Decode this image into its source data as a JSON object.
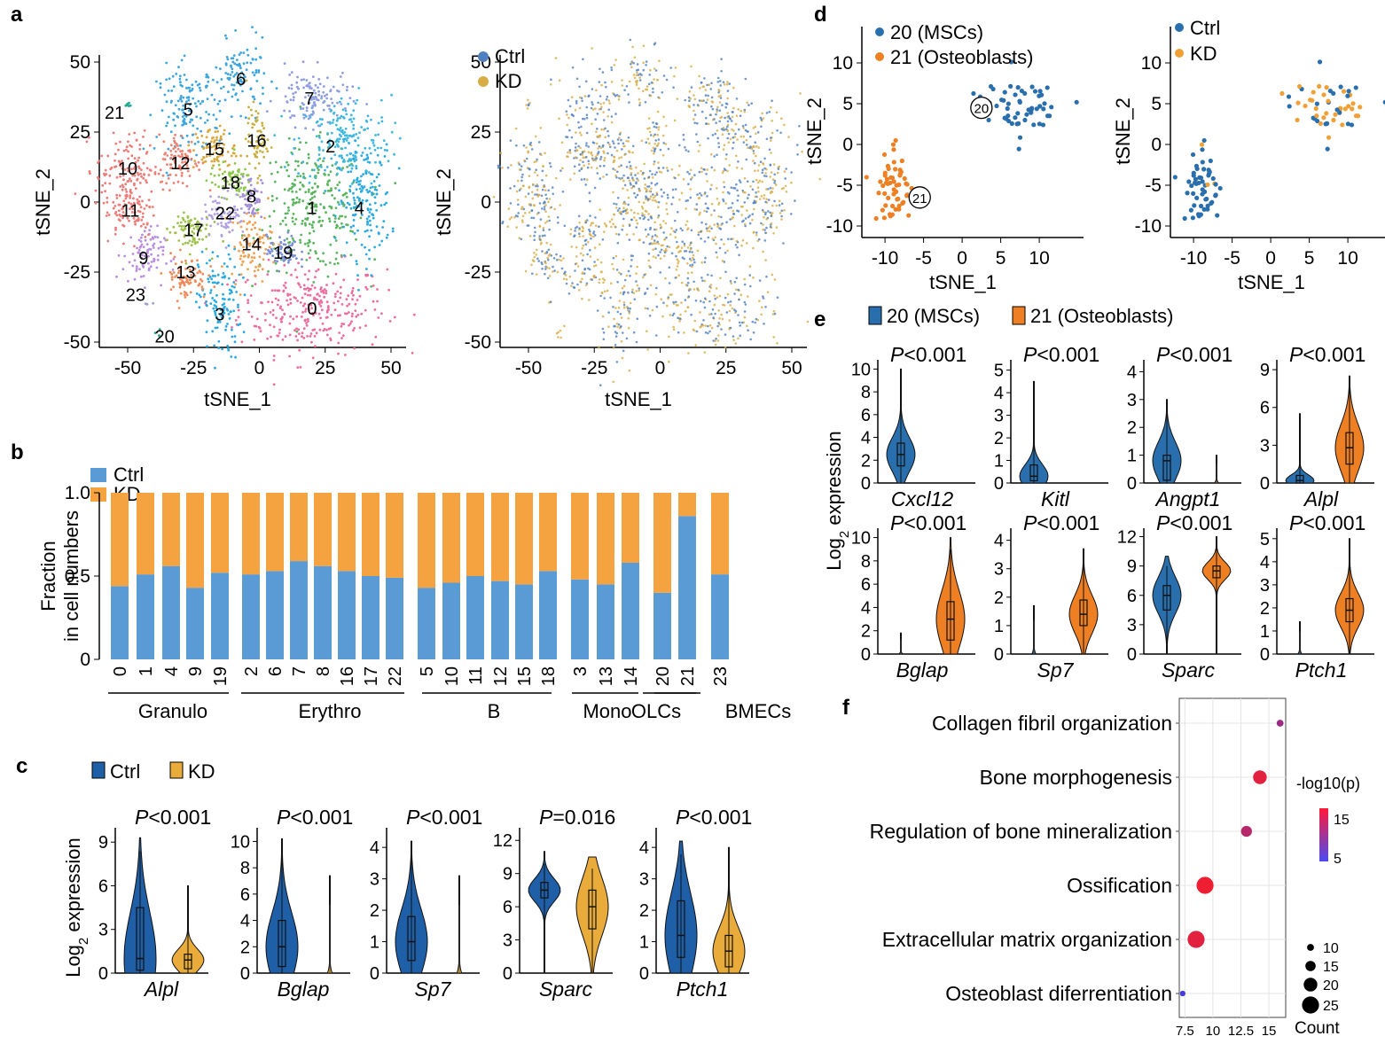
{
  "panels": {
    "a": {
      "label": "a",
      "xlabel": "tSNE_1",
      "ylabel": "tSNE_2",
      "ticks": [
        "50",
        "25",
        "0",
        "-25",
        "-50"
      ],
      "xticks": [
        "-50",
        "-25",
        "0",
        "25",
        "50"
      ],
      "clusters": [
        "0",
        "1",
        "2",
        "3",
        "4",
        "5",
        "6",
        "7",
        "8",
        "9",
        "10",
        "11",
        "12",
        "13",
        "14",
        "15",
        "16",
        "17",
        "18",
        "19",
        "20",
        "21",
        "22",
        "23"
      ],
      "legend": [
        "Ctrl",
        "KD"
      ]
    },
    "b": {
      "label": "b",
      "ylabel_line1": "Fraction",
      "ylabel_line2": "in cell numbers",
      "yticks": [
        "1.0",
        "0.5",
        "0"
      ]
    },
    "c": {
      "label": "c",
      "ylabel": "Log2 expression",
      "ylabel_base": "Log",
      "ylabel_sub": "2",
      "ylabel_rest": " expression"
    },
    "d": {
      "label": "d",
      "xlabel": "tSNE_1",
      "ylabel": "tSNE_2",
      "yticks": [
        "10",
        "5",
        "0",
        "-5",
        "-10"
      ],
      "xticks": [
        "-10",
        "-5",
        "0",
        "5",
        "10"
      ],
      "legend_left": [
        "20 (MSCs)",
        "21 (Osteoblasts)"
      ],
      "legend_right": [
        "Ctrl",
        "KD"
      ],
      "cluster_marks": [
        "20",
        "21"
      ]
    },
    "e": {
      "label": "e",
      "legend": [
        "20 (MSCs)",
        "21 (Osteoblasts)"
      ],
      "ylabel_base": "Log",
      "ylabel_sub": "2",
      "ylabel_rest": " expression"
    },
    "f": {
      "label": "f"
    }
  },
  "colors": {
    "ctrl_light": "#5b9bd5",
    "kd_light": "#f4a340",
    "ctrl_dark": "#1f5fa8",
    "kd_gold": "#e9ab3a",
    "msc": "#2a6fad",
    "osteo": "#ee7f22",
    "tsne_ctrl": "#4f7fbf",
    "tsne_kd": "#d7ad45"
  },
  "chart_data": [
    {
      "type": "scatter",
      "id": "a-left",
      "title": "",
      "xlabel": "tSNE_1",
      "ylabel": "tSNE_2",
      "xlim": [
        -60,
        55
      ],
      "ylim": [
        -52,
        55
      ],
      "clusters": [
        {
          "id": "0",
          "center": [
            20,
            -38
          ],
          "color": "#ee6d9f"
        },
        {
          "id": "1",
          "center": [
            20,
            -2
          ],
          "color": "#5ab55e"
        },
        {
          "id": "2",
          "center": [
            32,
            22
          ],
          "color": "#3fb8e0"
        },
        {
          "id": "3",
          "center": [
            -15,
            -37
          ],
          "color": "#2aaae2"
        },
        {
          "id": "4",
          "center": [
            40,
            0
          ],
          "color": "#2aaae2"
        },
        {
          "id": "5",
          "center": [
            -27,
            33
          ],
          "color": "#3da6de"
        },
        {
          "id": "6",
          "center": [
            -7,
            45
          ],
          "color": "#3da6de"
        },
        {
          "id": "7",
          "center": [
            20,
            37
          ],
          "color": "#8e9ee0"
        },
        {
          "id": "8",
          "center": [
            -3,
            2
          ],
          "color": "#a48fd8"
        },
        {
          "id": "9",
          "center": [
            -44,
            -19
          ],
          "color": "#b98ee0"
        },
        {
          "id": "10",
          "center": [
            -50,
            12
          ],
          "color": "#ef7b78"
        },
        {
          "id": "11",
          "center": [
            -49,
            -3
          ],
          "color": "#ef7b78"
        },
        {
          "id": "12",
          "center": [
            -30,
            15
          ],
          "color": "#ef8070"
        },
        {
          "id": "13",
          "center": [
            -28,
            -27
          ],
          "color": "#f08a58"
        },
        {
          "id": "14",
          "center": [
            -3,
            -15
          ],
          "color": "#f0a050"
        },
        {
          "id": "15",
          "center": [
            -17,
            19
          ],
          "color": "#d9a73a"
        },
        {
          "id": "16",
          "center": [
            -1,
            22
          ],
          "color": "#c8b040"
        },
        {
          "id": "17",
          "center": [
            -27,
            -10
          ],
          "color": "#9cc24a"
        },
        {
          "id": "18",
          "center": [
            -11,
            8
          ],
          "color": "#8cc846"
        },
        {
          "id": "19",
          "center": [
            9,
            -18
          ],
          "color": "#7b8fd8"
        },
        {
          "id": "20",
          "center": [
            -38,
            -47
          ],
          "color": "#28a88c"
        },
        {
          "id": "21",
          "center": [
            -50,
            35
          ],
          "color": "#28a88c"
        },
        {
          "id": "22",
          "center": [
            -13,
            -4
          ],
          "color": "#b0a0e0"
        },
        {
          "id": "23",
          "center": [
            -42,
            -36
          ],
          "color": "#9aa0c8"
        }
      ]
    },
    {
      "type": "scatter",
      "id": "a-right",
      "xlabel": "tSNE_1",
      "ylabel": "tSNE_2",
      "series": [
        {
          "name": "Ctrl"
        },
        {
          "name": "KD"
        }
      ]
    },
    {
      "type": "bar",
      "id": "b",
      "stacked": true,
      "ylabel": "Fraction in cell numbers",
      "ylim": [
        0,
        1
      ],
      "categories": [
        "0",
        "1",
        "4",
        "9",
        "19",
        "2",
        "6",
        "7",
        "8",
        "16",
        "17",
        "22",
        "5",
        "10",
        "11",
        "12",
        "15",
        "18",
        "3",
        "13",
        "14",
        "20",
        "21",
        "23"
      ],
      "groups": [
        {
          "name": "Granulo",
          "members": [
            "0",
            "1",
            "4",
            "9",
            "19"
          ]
        },
        {
          "name": "Erythro",
          "members": [
            "2",
            "6",
            "7",
            "8",
            "16",
            "17",
            "22"
          ]
        },
        {
          "name": "B",
          "members": [
            "5",
            "10",
            "11",
            "12",
            "15",
            "18"
          ]
        },
        {
          "name": "Mono",
          "members": [
            "3",
            "13",
            "14"
          ]
        },
        {
          "name": "OLCs",
          "members": [
            "20",
            "21"
          ]
        },
        {
          "name": "BMECs",
          "members": [
            "23"
          ]
        }
      ],
      "series": [
        {
          "name": "Ctrl",
          "values": [
            0.44,
            0.51,
            0.56,
            0.43,
            0.52,
            0.51,
            0.53,
            0.59,
            0.56,
            0.53,
            0.5,
            0.49,
            0.43,
            0.46,
            0.5,
            0.47,
            0.45,
            0.53,
            0.48,
            0.45,
            0.58,
            0.4,
            0.86,
            0.51
          ]
        },
        {
          "name": "KD",
          "values": [
            0.56,
            0.49,
            0.44,
            0.57,
            0.48,
            0.49,
            0.47,
            0.41,
            0.44,
            0.47,
            0.5,
            0.51,
            0.57,
            0.54,
            0.5,
            0.53,
            0.55,
            0.47,
            0.52,
            0.55,
            0.42,
            0.6,
            0.14,
            0.49
          ]
        }
      ]
    },
    {
      "type": "violin",
      "id": "c",
      "legend": [
        "Ctrl",
        "KD"
      ],
      "ylabel": "Log2 expression",
      "panels": [
        {
          "gene": "Alpl",
          "p": "<0.001",
          "yticks": [
            "0",
            "3",
            "6",
            "9"
          ],
          "ymax": 9.5,
          "groups": [
            {
              "name": "Ctrl",
              "median": 1.0,
              "q1": 0.2,
              "q3": 4.5,
              "max": 9.3
            },
            {
              "name": "KD",
              "median": 0.9,
              "q1": 0.3,
              "q3": 1.3,
              "max": 6.0
            }
          ]
        },
        {
          "gene": "Bglap",
          "p": "<0.001",
          "yticks": [
            "0",
            "2",
            "4",
            "6",
            "8",
            "10"
          ],
          "ymax": 10.5,
          "groups": [
            {
              "name": "Ctrl",
              "median": 2.0,
              "q1": 0.5,
              "q3": 4.0,
              "max": 10.2
            },
            {
              "name": "KD",
              "median": 0.0,
              "q1": 0.0,
              "q3": 0.0,
              "max": 7.4
            }
          ]
        },
        {
          "gene": "Sp7",
          "p": "<0.001",
          "yticks": [
            "0",
            "1",
            "2",
            "3",
            "4"
          ],
          "ymax": 4.4,
          "groups": [
            {
              "name": "Ctrl",
              "median": 1.0,
              "q1": 0.4,
              "q3": 1.8,
              "max": 4.2
            },
            {
              "name": "KD",
              "median": 0.0,
              "q1": 0.0,
              "q3": 0.0,
              "max": 3.1
            }
          ]
        },
        {
          "gene": "Sparc",
          "p": "=0.016",
          "yticks": [
            "0",
            "3",
            "6",
            "9",
            "12"
          ],
          "ymax": 12.5,
          "groups": [
            {
              "name": "Ctrl",
              "median": 7.5,
              "q1": 6.8,
              "q3": 8.2,
              "max": 11.0
            },
            {
              "name": "KD",
              "median": 6.0,
              "q1": 4.0,
              "q3": 7.5,
              "max": 10.5
            }
          ]
        },
        {
          "gene": "Ptch1",
          "p": "<0.001",
          "yticks": [
            "0",
            "1",
            "2",
            "3",
            "4"
          ],
          "ymax": 4.4,
          "groups": [
            {
              "name": "Ctrl",
              "median": 1.2,
              "q1": 0.5,
              "q3": 2.3,
              "max": 4.2
            },
            {
              "name": "KD",
              "median": 0.7,
              "q1": 0.2,
              "q3": 1.2,
              "max": 4.0
            }
          ]
        }
      ]
    },
    {
      "type": "scatter",
      "id": "d-left",
      "xlabel": "tSNE_1",
      "ylabel": "tSNE_2",
      "xlim": [
        -13,
        13
      ],
      "ylim": [
        -11,
        13
      ],
      "series": [
        {
          "name": "20 (MSCs)",
          "center": [
            7,
            4.5
          ],
          "spread": [
            4,
            3.5
          ]
        },
        {
          "name": "21 (Osteoblasts)",
          "center": [
            -9,
            -5
          ],
          "spread": [
            2.2,
            4
          ]
        }
      ]
    },
    {
      "type": "scatter",
      "id": "d-right",
      "xlabel": "tSNE_1",
      "ylabel": "tSNE_2",
      "xlim": [
        -13,
        13
      ],
      "ylim": [
        -11,
        13
      ],
      "series": [
        {
          "name": "Ctrl"
        },
        {
          "name": "KD"
        }
      ]
    },
    {
      "type": "violin",
      "id": "e",
      "legend": [
        "20 (MSCs)",
        "21 (Osteoblasts)"
      ],
      "ylabel": "Log2 expression",
      "panels": [
        {
          "gene": "Cxcl12",
          "p": "<0.001",
          "yticks": [
            "0",
            "2",
            "4",
            "6",
            "8",
            "10"
          ],
          "ymax": 10.5,
          "groups": [
            {
              "name": "20 (MSCs)",
              "median": 2.5,
              "q1": 1.5,
              "q3": 3.5,
              "max": 10.0
            },
            {
              "name": "21 (Osteoblasts)",
              "median": 0,
              "q1": 0,
              "q3": 0,
              "max": 0
            }
          ]
        },
        {
          "gene": "Kitl",
          "p": "<0.001",
          "yticks": [
            "0",
            "1",
            "2",
            "3",
            "4",
            "5"
          ],
          "ymax": 5.3,
          "groups": [
            {
              "name": "20 (MSCs)",
              "median": 0.3,
              "q1": 0.1,
              "q3": 0.8,
              "max": 4.5
            },
            {
              "name": "21 (Osteoblasts)",
              "median": 0,
              "q1": 0,
              "q3": 0,
              "max": 0
            }
          ]
        },
        {
          "gene": "Angpt1",
          "p": "<0.001",
          "yticks": [
            "0",
            "1",
            "2",
            "3",
            "4"
          ],
          "ymax": 4.3,
          "groups": [
            {
              "name": "20 (MSCs)",
              "median": 0.8,
              "q1": 0.1,
              "q3": 1.0,
              "max": 3.0
            },
            {
              "name": "21 (Osteoblasts)",
              "median": 0,
              "q1": 0,
              "q3": 0,
              "max": 1.0
            }
          ]
        },
        {
          "gene": "Alpl",
          "p": "<0.001",
          "yticks": [
            "0",
            "3",
            "6",
            "9"
          ],
          "ymax": 9.5,
          "groups": [
            {
              "name": "20 (MSCs)",
              "median": 0.2,
              "q1": 0.0,
              "q3": 0.6,
              "max": 5.5
            },
            {
              "name": "21 (Osteoblasts)",
              "median": 2.8,
              "q1": 1.5,
              "q3": 4.0,
              "max": 8.5
            }
          ]
        },
        {
          "gene": "Bglap",
          "p": "<0.001",
          "yticks": [
            "0",
            "2",
            "4",
            "6",
            "8",
            "10"
          ],
          "ymax": 10.5,
          "groups": [
            {
              "name": "20 (MSCs)",
              "median": 0,
              "q1": 0,
              "q3": 0,
              "max": 1.8
            },
            {
              "name": "21 (Osteoblasts)",
              "median": 3.0,
              "q1": 1.2,
              "q3": 4.5,
              "max": 10.0
            }
          ]
        },
        {
          "gene": "Sp7",
          "p": "<0.001",
          "yticks": [
            "0",
            "1",
            "2",
            "3",
            "4"
          ],
          "ymax": 4.3,
          "groups": [
            {
              "name": "20 (MSCs)",
              "median": 0,
              "q1": 0,
              "q3": 0,
              "max": 1.7
            },
            {
              "name": "21 (Osteoblasts)",
              "median": 1.4,
              "q1": 1.0,
              "q3": 1.9,
              "max": 3.7
            }
          ]
        },
        {
          "gene": "Sparc",
          "p": "<0.001",
          "yticks": [
            "0",
            "3",
            "6",
            "9",
            "12"
          ],
          "ymax": 12.5,
          "groups": [
            {
              "name": "20 (MSCs)",
              "median": 6.0,
              "q1": 4.5,
              "q3": 7.0,
              "max": 10.0
            },
            {
              "name": "21 (Osteoblasts)",
              "median": 8.5,
              "q1": 7.8,
              "q3": 9.0,
              "max": 12.0
            }
          ]
        },
        {
          "gene": "Ptch1",
          "p": "<0.001",
          "yticks": [
            "0",
            "1",
            "2",
            "3",
            "4",
            "5"
          ],
          "ymax": 5.3,
          "groups": [
            {
              "name": "20 (MSCs)",
              "median": 0,
              "q1": 0,
              "q3": 0,
              "max": 1.4
            },
            {
              "name": "21 (Osteoblasts)",
              "median": 1.9,
              "q1": 1.4,
              "q3": 2.4,
              "max": 5.0
            }
          ]
        }
      ]
    },
    {
      "type": "scatter",
      "id": "f",
      "xlim": [
        7,
        16.5
      ],
      "xticks": [
        "7.5",
        "10",
        "12.5",
        "15"
      ],
      "terms": [
        {
          "name": "Collagen fibril organization",
          "x": 16.0,
          "count": 10,
          "logp": 11
        },
        {
          "name": "Bone morphogenesis",
          "x": 14.2,
          "count": 20,
          "logp": 16
        },
        {
          "name": "Regulation of bone mineralization",
          "x": 13.0,
          "count": 16,
          "logp": 13
        },
        {
          "name": "Ossification",
          "x": 9.3,
          "count": 25,
          "logp": 17
        },
        {
          "name": "Extracellular matrix organization",
          "x": 8.5,
          "count": 25,
          "logp": 16
        },
        {
          "name": "Osteoblast diferrentiation",
          "x": 7.3,
          "count": 8,
          "logp": 5
        }
      ],
      "color_legend": {
        "title": "-log10(p)",
        "ticks": [
          "15",
          "5"
        ]
      },
      "size_legend": {
        "title": "Count",
        "ticks": [
          "10",
          "15",
          "20",
          "25"
        ]
      }
    }
  ]
}
